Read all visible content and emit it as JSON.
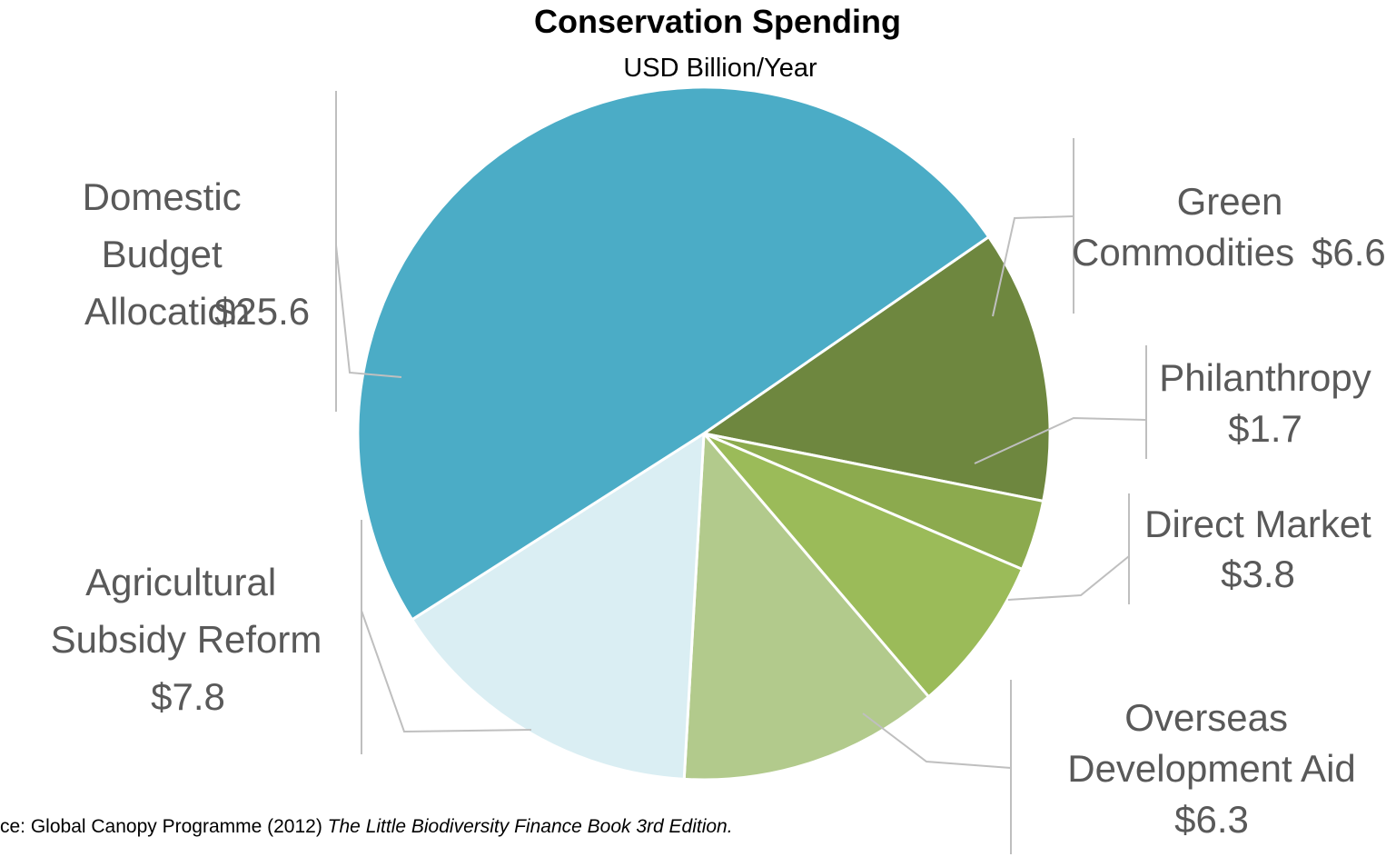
{
  "chart_data": {
    "type": "pie",
    "title": "Conservation Spending",
    "subtitle": "USD Billion/Year",
    "slices": [
      {
        "label": "Domestic Budget Allocation",
        "value": 25.6,
        "value_text": "$25.6",
        "color": "#4BACC6"
      },
      {
        "label": "Green Commodities",
        "value": 6.6,
        "value_text": "$6.6",
        "color": "#6E873F"
      },
      {
        "label": "Philanthropy",
        "value": 1.7,
        "value_text": "$1.7",
        "color": "#8CAA4E"
      },
      {
        "label": "Direct Market",
        "value": 3.8,
        "value_text": "$3.8",
        "color": "#9BBB59"
      },
      {
        "label": "Overseas Development Aid",
        "value": 6.3,
        "value_text": "$6.3",
        "color": "#B2CA8C"
      },
      {
        "label": "Agricultural Subsidy Reform",
        "value": 7.8,
        "value_text": "$7.8",
        "color": "#DAEEF3"
      }
    ],
    "source_prefix": "ce: Global Canopy Programme (2012) ",
    "source_title": "The Little Biodiversity Finance Book 3rd Edition."
  }
}
